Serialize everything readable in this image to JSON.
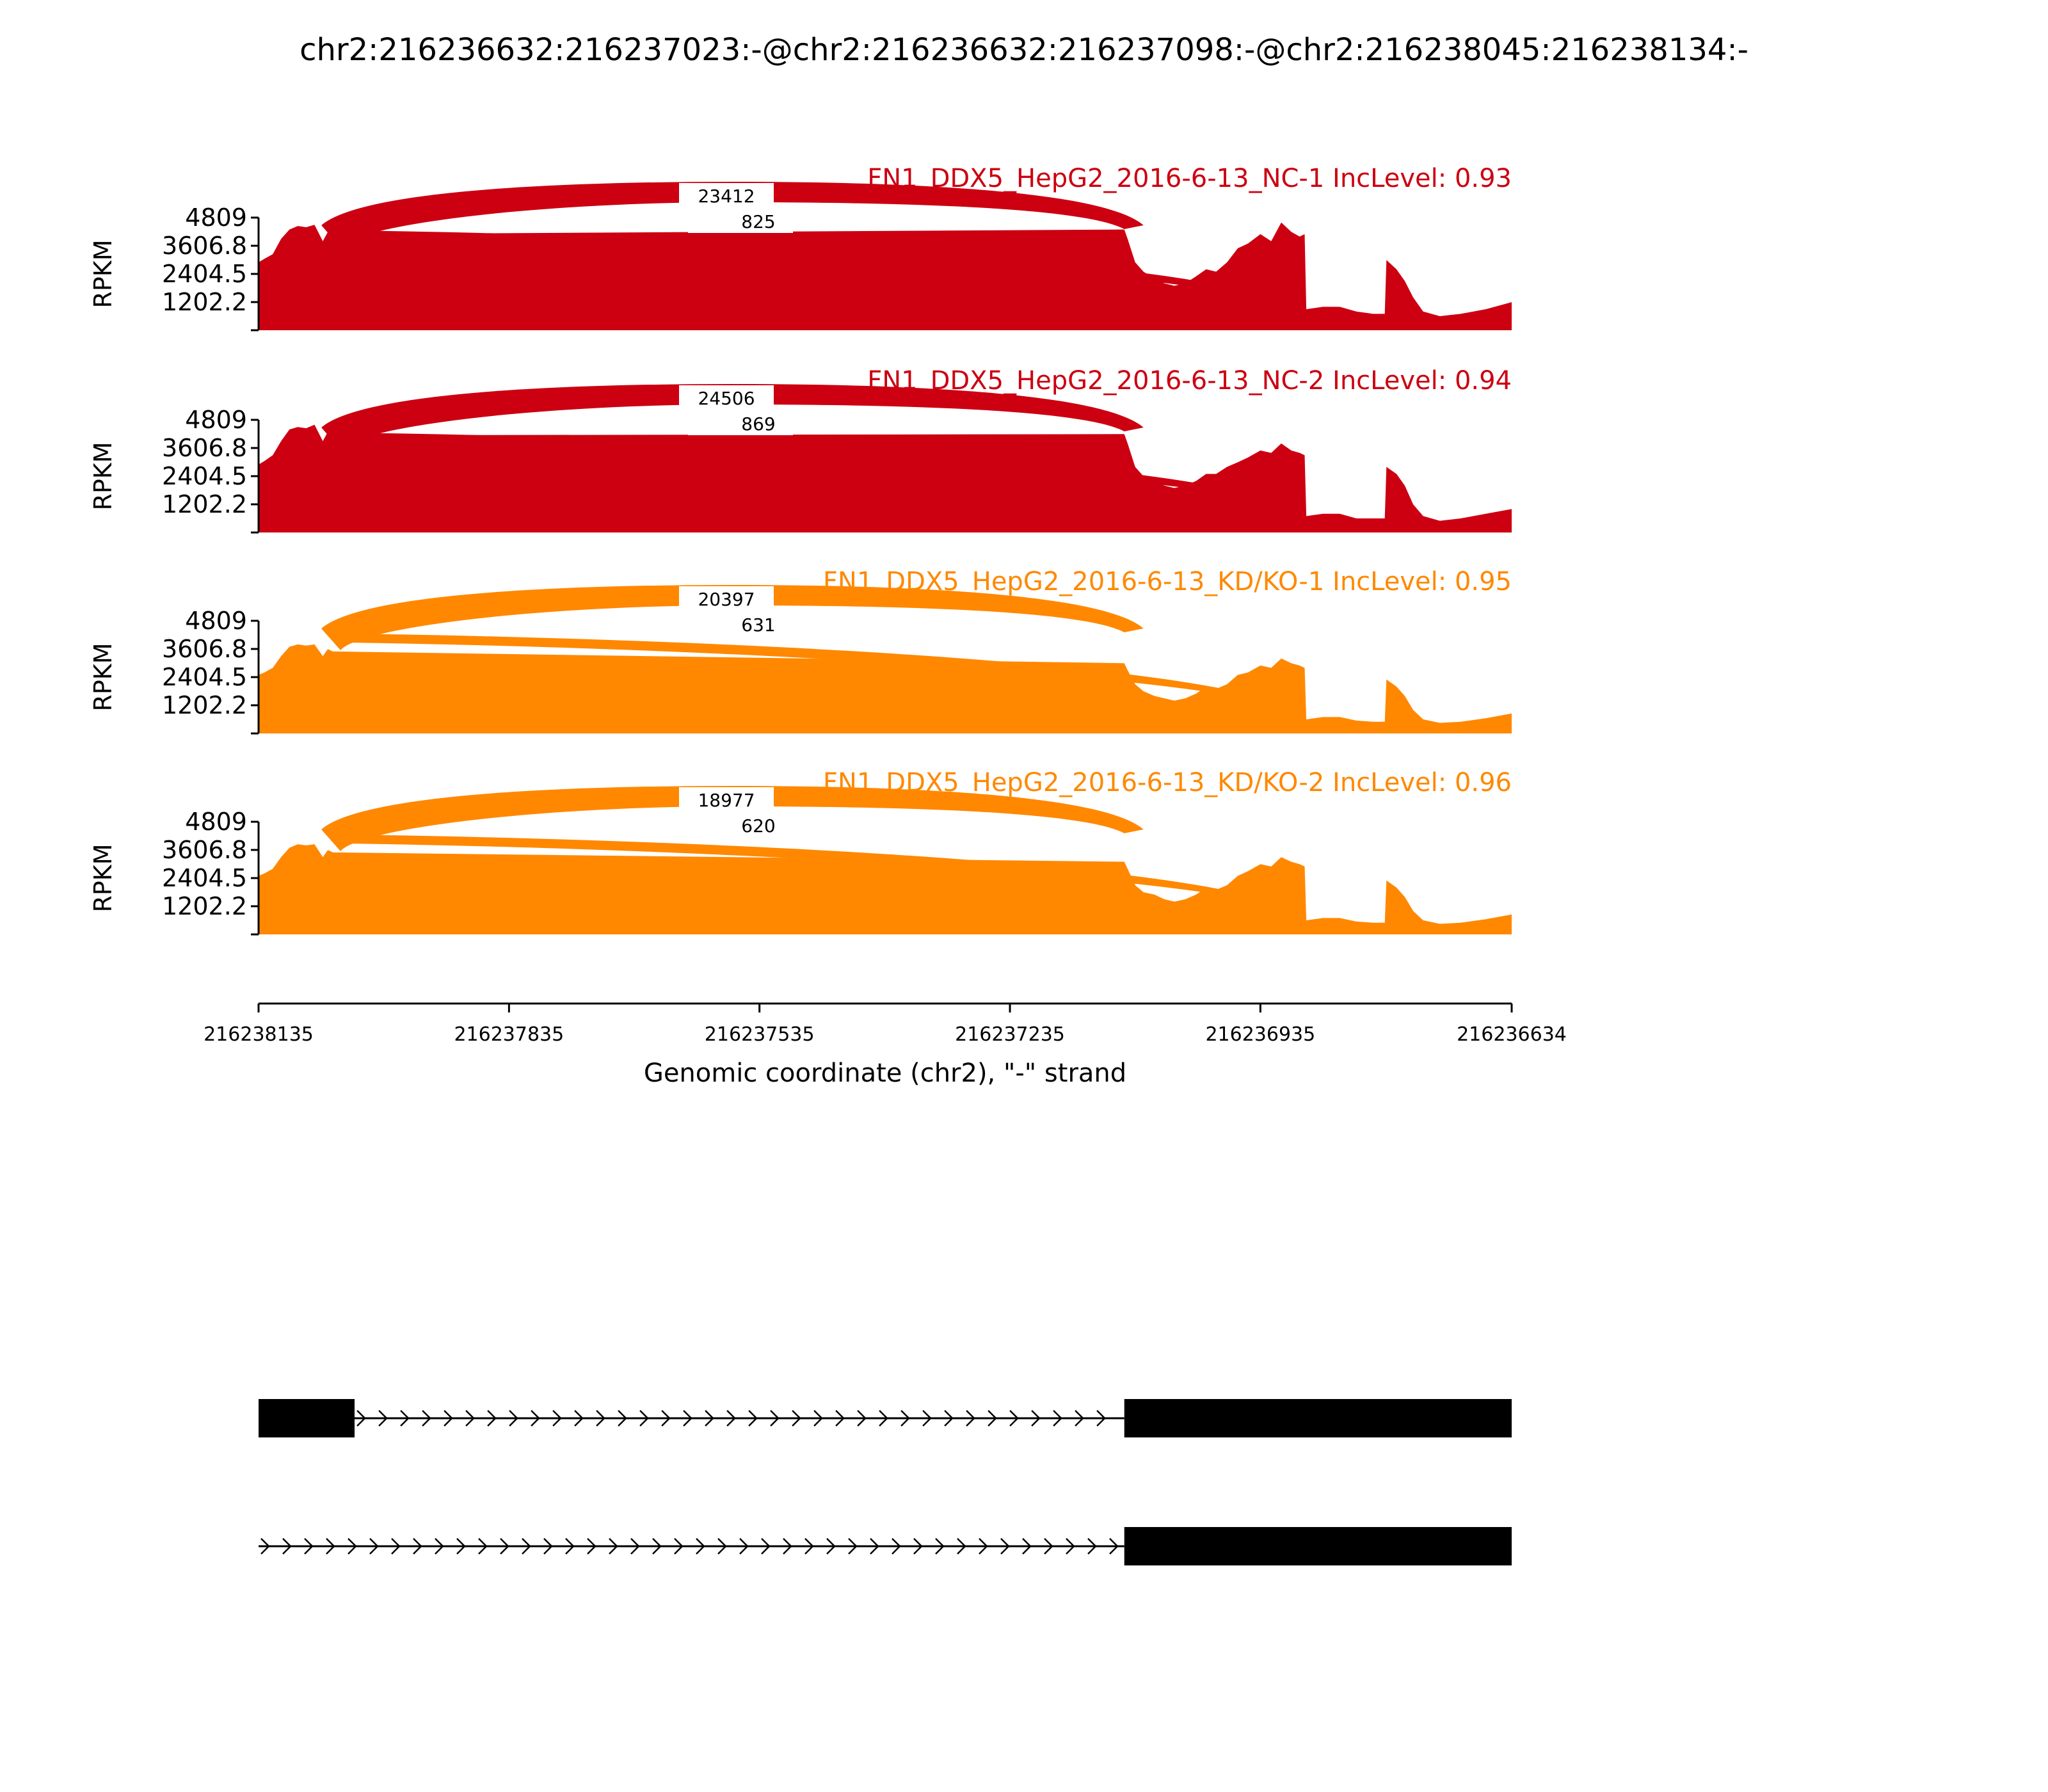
{
  "title": "chr2:216236632:216237023:-@chr2:216236632:216237098:-@chr2:216238045:216238134:-",
  "chart_data": {
    "type": "area",
    "subtype": "sashimi",
    "x_range": [
      216238135,
      216236634
    ],
    "x_ticks": [
      "216238135",
      "216237835",
      "216237535",
      "216237235",
      "216236935",
      "216236634"
    ],
    "xlabel": "Genomic coordinate (chr2), \"-\" strand",
    "ylabel": "RPKM",
    "y_ticks": [
      "1202.2",
      "2404.5",
      "3606.8",
      "4809"
    ],
    "ylim": [
      0,
      4809
    ],
    "exons": [
      [
        216238135,
        216238045
      ],
      [
        216237098,
        216236634
      ]
    ],
    "tracks": [
      {
        "label": "FN1_DDX5_HepG2_2016-6-13_NC-1 IncLevel: 0.93",
        "color": "#cc0011",
        "junction_long": "23412",
        "junction_short": "825",
        "profile": [
          [
            216238135,
            2900
          ],
          [
            216238128,
            3050
          ],
          [
            216238118,
            3250
          ],
          [
            216238108,
            3900
          ],
          [
            216238098,
            4300
          ],
          [
            216238088,
            4450
          ],
          [
            216238078,
            4400
          ],
          [
            216238068,
            4500
          ],
          [
            216238058,
            3800
          ],
          [
            216238052,
            4200
          ],
          [
            216238046,
            4100
          ],
          [
            216237098,
            4300
          ],
          [
            216237094,
            3900
          ],
          [
            216237085,
            2900
          ],
          [
            216237075,
            2500
          ],
          [
            216237062,
            2200
          ],
          [
            216237050,
            2000
          ],
          [
            216237038,
            1900
          ],
          [
            216237025,
            2000
          ],
          [
            216237012,
            2300
          ],
          [
            216237000,
            2600
          ],
          [
            216236988,
            2500
          ],
          [
            216236975,
            2900
          ],
          [
            216236962,
            3500
          ],
          [
            216236950,
            3700
          ],
          [
            216236935,
            4100
          ],
          [
            216236922,
            3800
          ],
          [
            216236910,
            4600
          ],
          [
            216236898,
            4200
          ],
          [
            216236888,
            4000
          ],
          [
            216236882,
            4100
          ],
          [
            216236880,
            900
          ],
          [
            216236860,
            1000
          ],
          [
            216236840,
            1000
          ],
          [
            216236820,
            800
          ],
          [
            216236800,
            700
          ],
          [
            216236786,
            700
          ],
          [
            216236784,
            3000
          ],
          [
            216236772,
            2600
          ],
          [
            216236762,
            2100
          ],
          [
            216236752,
            1400
          ],
          [
            216236740,
            800
          ],
          [
            216236720,
            600
          ],
          [
            216236695,
            700
          ],
          [
            216236665,
            900
          ],
          [
            216236634,
            1200
          ]
        ]
      },
      {
        "label": "FN1_DDX5_HepG2_2016-6-13_NC-2 IncLevel: 0.94",
        "color": "#cc0011",
        "junction_long": "24506",
        "junction_short": "869",
        "profile": [
          [
            216238135,
            2900
          ],
          [
            216238128,
            3050
          ],
          [
            216238118,
            3300
          ],
          [
            216238108,
            3900
          ],
          [
            216238098,
            4400
          ],
          [
            216238088,
            4500
          ],
          [
            216238078,
            4450
          ],
          [
            216238068,
            4600
          ],
          [
            216238058,
            3900
          ],
          [
            216238052,
            4300
          ],
          [
            216238046,
            4150
          ],
          [
            216237098,
            4200
          ],
          [
            216237094,
            3800
          ],
          [
            216237085,
            2800
          ],
          [
            216237075,
            2400
          ],
          [
            216237062,
            2200
          ],
          [
            216237050,
            2000
          ],
          [
            216237038,
            1900
          ],
          [
            216237025,
            2000
          ],
          [
            216237012,
            2200
          ],
          [
            216237000,
            2500
          ],
          [
            216236988,
            2500
          ],
          [
            216236975,
            2800
          ],
          [
            216236962,
            3000
          ],
          [
            216236950,
            3200
          ],
          [
            216236935,
            3500
          ],
          [
            216236922,
            3400
          ],
          [
            216236910,
            3800
          ],
          [
            216236898,
            3500
          ],
          [
            216236888,
            3400
          ],
          [
            216236882,
            3300
          ],
          [
            216236880,
            700
          ],
          [
            216236860,
            800
          ],
          [
            216236840,
            800
          ],
          [
            216236820,
            600
          ],
          [
            216236800,
            600
          ],
          [
            216236786,
            600
          ],
          [
            216236784,
            2800
          ],
          [
            216236772,
            2500
          ],
          [
            216236762,
            2000
          ],
          [
            216236752,
            1200
          ],
          [
            216236740,
            700
          ],
          [
            216236720,
            500
          ],
          [
            216236695,
            600
          ],
          [
            216236665,
            800
          ],
          [
            216236634,
            1000
          ]
        ]
      },
      {
        "label": "FN1_DDX5_HepG2_2016-6-13_KD/KO-1 IncLevel: 0.95",
        "color": "#ff8800",
        "junction_long": "20397",
        "junction_short": "631",
        "profile": [
          [
            216238135,
            2500
          ],
          [
            216238128,
            2600
          ],
          [
            216238118,
            2800
          ],
          [
            216238108,
            3300
          ],
          [
            216238098,
            3700
          ],
          [
            216238088,
            3800
          ],
          [
            216238078,
            3750
          ],
          [
            216238068,
            3800
          ],
          [
            216238058,
            3300
          ],
          [
            216238052,
            3600
          ],
          [
            216238046,
            3500
          ],
          [
            216237098,
            3000
          ],
          [
            216237094,
            2700
          ],
          [
            216237085,
            2100
          ],
          [
            216237075,
            1800
          ],
          [
            216237062,
            1600
          ],
          [
            216237050,
            1500
          ],
          [
            216237038,
            1400
          ],
          [
            216237025,
            1500
          ],
          [
            216237012,
            1700
          ],
          [
            216237000,
            2000
          ],
          [
            216236988,
            1900
          ],
          [
            216236975,
            2100
          ],
          [
            216236962,
            2500
          ],
          [
            216236950,
            2600
          ],
          [
            216236935,
            2900
          ],
          [
            216236922,
            2800
          ],
          [
            216236910,
            3200
          ],
          [
            216236898,
            3000
          ],
          [
            216236888,
            2900
          ],
          [
            216236882,
            2800
          ],
          [
            216236880,
            600
          ],
          [
            216236860,
            700
          ],
          [
            216236840,
            700
          ],
          [
            216236820,
            550
          ],
          [
            216236800,
            500
          ],
          [
            216236786,
            500
          ],
          [
            216236784,
            2300
          ],
          [
            216236772,
            2000
          ],
          [
            216236762,
            1600
          ],
          [
            216236752,
            1000
          ],
          [
            216236740,
            600
          ],
          [
            216236720,
            450
          ],
          [
            216236695,
            500
          ],
          [
            216236665,
            650
          ],
          [
            216236634,
            850
          ]
        ]
      },
      {
        "label": "FN1_DDX5_HepG2_2016-6-13_KD/KO-2 IncLevel: 0.96",
        "color": "#ff8800",
        "junction_long": "18977",
        "junction_short": "620",
        "profile": [
          [
            216238135,
            2500
          ],
          [
            216238128,
            2600
          ],
          [
            216238118,
            2800
          ],
          [
            216238108,
            3300
          ],
          [
            216238098,
            3700
          ],
          [
            216238088,
            3850
          ],
          [
            216238078,
            3800
          ],
          [
            216238068,
            3850
          ],
          [
            216238058,
            3300
          ],
          [
            216238052,
            3600
          ],
          [
            216238046,
            3500
          ],
          [
            216237098,
            3100
          ],
          [
            216237094,
            2800
          ],
          [
            216237085,
            2100
          ],
          [
            216237075,
            1800
          ],
          [
            216237062,
            1700
          ],
          [
            216237050,
            1500
          ],
          [
            216237038,
            1400
          ],
          [
            216237025,
            1500
          ],
          [
            216237012,
            1700
          ],
          [
            216237000,
            2000
          ],
          [
            216236988,
            1900
          ],
          [
            216236975,
            2100
          ],
          [
            216236962,
            2500
          ],
          [
            216236950,
            2700
          ],
          [
            216236935,
            3000
          ],
          [
            216236922,
            2900
          ],
          [
            216236910,
            3300
          ],
          [
            216236898,
            3100
          ],
          [
            216236888,
            3000
          ],
          [
            216236882,
            2900
          ],
          [
            216236880,
            600
          ],
          [
            216236860,
            700
          ],
          [
            216236840,
            700
          ],
          [
            216236820,
            550
          ],
          [
            216236800,
            500
          ],
          [
            216236786,
            500
          ],
          [
            216236784,
            2300
          ],
          [
            216236772,
            2000
          ],
          [
            216236762,
            1600
          ],
          [
            216236752,
            1000
          ],
          [
            216236740,
            600
          ],
          [
            216236720,
            450
          ],
          [
            216236695,
            500
          ],
          [
            216236665,
            650
          ],
          [
            216236634,
            850
          ]
        ]
      }
    ]
  }
}
